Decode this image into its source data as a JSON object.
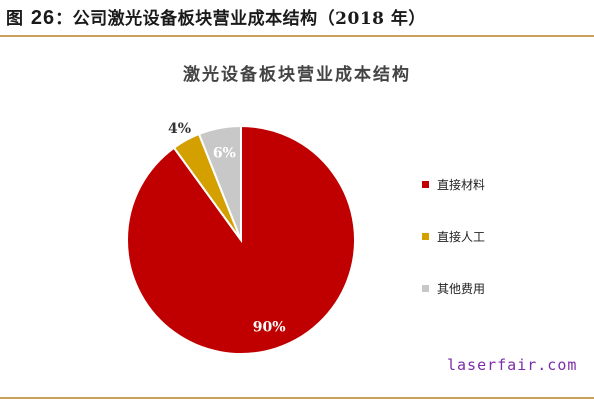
{
  "figure": {
    "label_prefix": "图",
    "number": "26",
    "title": "：公司激光设备板块营业成本结构（2018 年）"
  },
  "watermark": "laserfair.com",
  "colors": {
    "rule": "#c9a15a",
    "watermark": "#7a2ea8"
  },
  "chart_data": {
    "type": "pie",
    "title": "激光设备板块营业成本结构",
    "slices": [
      {
        "label": "直接材料",
        "value": 90,
        "display": "90%",
        "color": "#c00000"
      },
      {
        "label": "直接人工",
        "value": 4,
        "display": "4%",
        "color": "#d4a000"
      },
      {
        "label": "其他费用",
        "value": 6,
        "display": "6%",
        "color": "#c8c8c8"
      }
    ],
    "start": "12 o'clock",
    "direction": "clockwise",
    "legend_position": "right"
  }
}
